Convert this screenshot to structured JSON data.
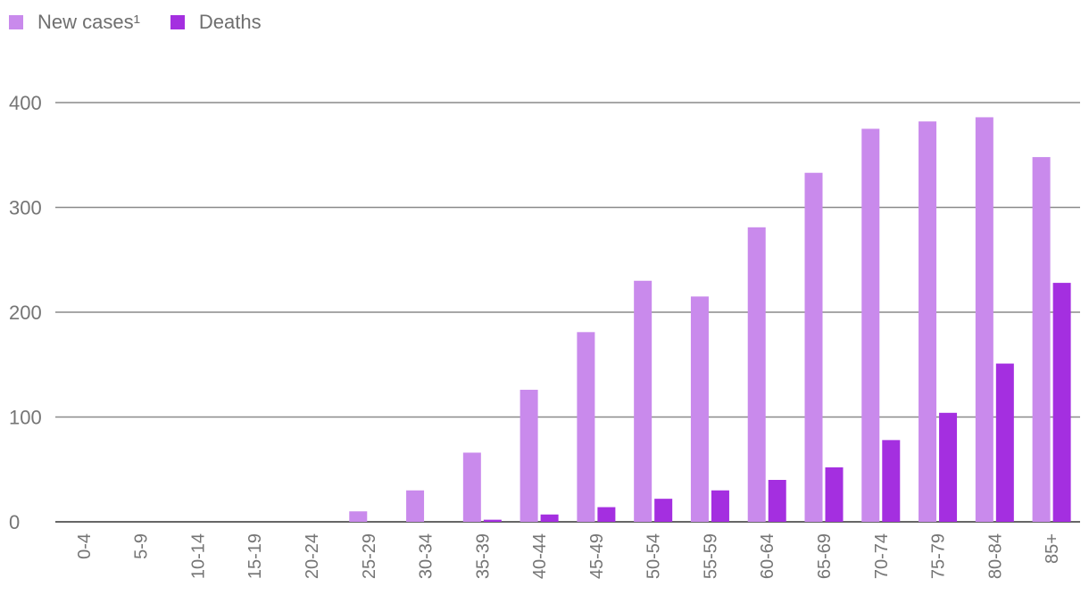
{
  "chart_data": {
    "type": "bar",
    "categories": [
      "0-4",
      "5-9",
      "10-14",
      "15-19",
      "20-24",
      "25-29",
      "30-34",
      "35-39",
      "40-44",
      "45-49",
      "50-54",
      "55-59",
      "60-64",
      "65-69",
      "70-74",
      "75-79",
      "80-84",
      "85+"
    ],
    "series": [
      {
        "name": "New cases¹",
        "color": "#c98aec",
        "values": [
          0,
          0,
          0,
          0,
          0,
          10,
          30,
          66,
          126,
          181,
          230,
          215,
          281,
          333,
          375,
          382,
          386,
          348
        ]
      },
      {
        "name": "Deaths",
        "color": "#a42fe0",
        "values": [
          0,
          0,
          0,
          0,
          0,
          0,
          0,
          2,
          7,
          14,
          22,
          30,
          40,
          52,
          78,
          104,
          151,
          228
        ]
      }
    ],
    "ylim": [
      0,
      400
    ],
    "yticks": [
      0,
      100,
      200,
      300,
      400
    ],
    "grid": true,
    "legend_position": "top-left"
  }
}
